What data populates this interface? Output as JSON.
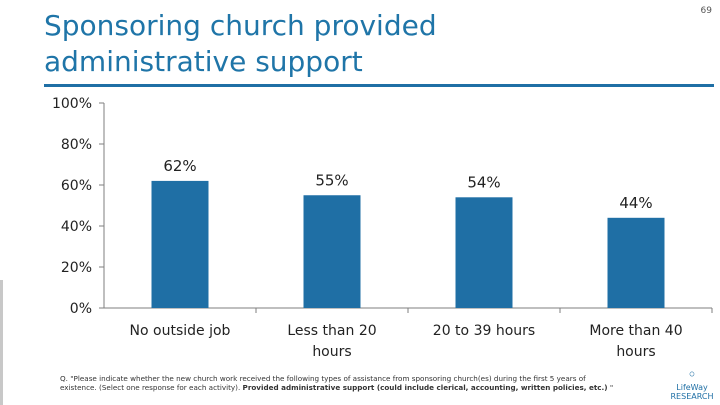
{
  "page": {
    "title": "Sponsoring church provided administrative support",
    "number": "69"
  },
  "chart_data": {
    "type": "bar",
    "title": "Sponsoring church provided administrative support",
    "categories": [
      "No outside job",
      "Less than 20 hours",
      "20 to 39 hours",
      "More than 40 hours"
    ],
    "values": [
      62,
      55,
      54,
      44
    ],
    "data_labels": [
      "62%",
      "55%",
      "54%",
      "44%"
    ],
    "ylim": [
      0,
      100
    ],
    "yticks": [
      0,
      20,
      40,
      60,
      80,
      100
    ],
    "ytick_labels": [
      "0%",
      "20%",
      "40%",
      "60%",
      "80%",
      "100%"
    ],
    "xlabel": "",
    "ylabel": "",
    "grid": false,
    "bar_color": "#1f6fa5"
  },
  "footnote": {
    "question": "Q. \"Please indicate whether the new church work received the following types of assistance from sponsoring church(es) during the first 5 years of existence. (Select one response for each activity). ",
    "bold": "Provided administrative support (could include clerical, accounting, written policies, etc.)",
    "end": " \""
  },
  "logo": {
    "line1": "LifeWay",
    "line2": "RESEARCH"
  },
  "colors": {
    "accent": "#1f75a8",
    "bar": "#1f6fa5"
  }
}
